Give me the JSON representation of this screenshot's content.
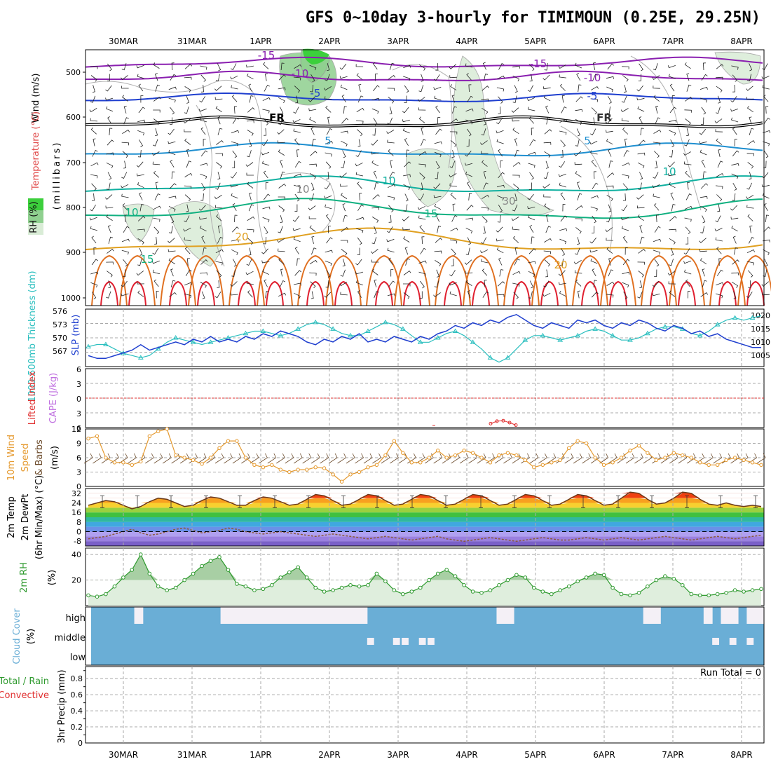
{
  "chart_data": {
    "type": "line",
    "title": "GFS 0~10day 3-hourly for TIMIMOUN (0.25E, 29.25N)",
    "dates": [
      "30MAR",
      "31MAR",
      "1APR",
      "2APR",
      "3APR",
      "4APR",
      "5APR",
      "6APR",
      "7APR",
      "8APR"
    ],
    "colors": {
      "grid": "#aaaaaa",
      "slp": "#1f3fcf",
      "thickness": "#2bbfbf",
      "lifted": "#e03030",
      "cape": "#c070e0",
      "wind": "#e59a30",
      "barbs": "#6b4a2a",
      "rh": "#2f9a2f",
      "rhfill": "#dfeedd",
      "cloud": "#6aaed6",
      "cloudgap": "#f4f0f6",
      "dewpt": "#8a5a3a",
      "rain": "#e03030",
      "total": "#2f9a2f",
      "purple": "#8a1fb0",
      "blue": "#1f3fcf",
      "lightblue": "#1f8fd0",
      "teal": "#10b0a0",
      "green": "#10b080",
      "orange": "#e0a020",
      "darkorange": "#e07020",
      "red": "#e02030"
    },
    "sounding": {
      "ylabel_wind": "Wind (m/s)",
      "ylabel_temp": "Temperature (°C)",
      "ylabel_rh": "RH (%)",
      "ylabel_mb": "(millibars)",
      "yticks": [
        "500",
        "600",
        "700",
        "800",
        "900",
        "1000"
      ],
      "contour_labels": [
        "-15",
        "-15",
        "-10",
        "-10",
        "-5",
        "-5",
        "FR",
        "FR",
        "5",
        "5",
        "10",
        "10",
        "15",
        "15",
        "20",
        "20",
        "10",
        "10",
        "30"
      ]
    },
    "slp_panel": {
      "ylabel_thickness": "1000-500mb Thickness (dm)",
      "ylabel_slp": "SLP (mb)",
      "ticks_thickness": [
        "576",
        "573",
        "570",
        "567"
      ],
      "ticks_slp": [
        "1020",
        "1015",
        "1010",
        "1005"
      ],
      "slp": [
        1006,
        1005,
        1005,
        1006,
        1007,
        1008,
        1010,
        1008,
        1009,
        1010,
        1011,
        1010,
        1012,
        1011,
        1013,
        1011,
        1012,
        1011,
        1013,
        1012,
        1014,
        1013,
        1015,
        1014,
        1013,
        1011,
        1010,
        1012,
        1011,
        1013,
        1012,
        1014,
        1011,
        1012,
        1011,
        1013,
        1012,
        1011,
        1013,
        1012,
        1014,
        1015,
        1017,
        1016,
        1018,
        1017,
        1019,
        1018,
        1020,
        1021,
        1019,
        1017,
        1016,
        1018,
        1017,
        1016,
        1019,
        1018,
        1019,
        1017,
        1016,
        1018,
        1017,
        1019,
        1018,
        1016,
        1015,
        1017,
        1016,
        1014,
        1015,
        1013,
        1014,
        1012,
        1011,
        1010,
        1009,
        1009
      ],
      "thickness": [
        568.5,
        569,
        569,
        568,
        567,
        566.5,
        566,
        566.5,
        568,
        569.5,
        570.5,
        570,
        569.5,
        569,
        569.5,
        570,
        570.5,
        571,
        571.5,
        572,
        572,
        571.5,
        571,
        571.5,
        572.5,
        573.5,
        574,
        573.5,
        572.5,
        571.5,
        571,
        571,
        572,
        573,
        574,
        573.5,
        572.5,
        571,
        569.5,
        569.5,
        570.5,
        571.5,
        572,
        571,
        569.5,
        568,
        566,
        565,
        566,
        568,
        570,
        571,
        571,
        570.5,
        570,
        570.5,
        571,
        572,
        572.5,
        572,
        571,
        570,
        570,
        570.5,
        571.5,
        572.5,
        573,
        573,
        572.5,
        571.5,
        571,
        572,
        573.5,
        574.5,
        575,
        574.5,
        575,
        575.5
      ]
    },
    "cape_panel": {
      "ylabel_lifted": "Lifted Index",
      "ylabel_cape": "CAPE (J/kg)",
      "ticks": [
        "6",
        "3",
        "0",
        "3",
        "6"
      ],
      "lifted_segment": [
        5.2,
        4.7,
        4.6,
        5.0,
        5.5
      ]
    },
    "wind_panel": {
      "ylabel_main": "10m Wind",
      "ylabel_speed": "Speed",
      "ylabel_barbs": "& Barbs",
      "units": "(m/s)",
      "ticks": [
        "12",
        "9",
        "6",
        "3",
        "0"
      ],
      "speed": [
        10,
        10.5,
        6,
        5,
        5,
        4.5,
        5.2,
        10.5,
        11.5,
        12,
        6.5,
        6,
        5.5,
        4.7,
        6,
        8,
        9.5,
        9.5,
        6,
        4.5,
        4,
        4.5,
        3.5,
        3,
        3.5,
        3.5,
        4,
        3.8,
        2.5,
        1,
        2.5,
        3,
        4,
        4.5,
        6.5,
        9.5,
        7,
        5,
        5,
        6,
        7.5,
        6,
        6.5,
        7.5,
        7,
        6,
        5,
        6.5,
        7,
        6.5,
        5.5,
        4,
        4.5,
        5,
        5.5,
        8,
        9.5,
        9,
        6,
        4.5,
        5,
        6,
        7.5,
        8.5,
        7,
        5.5,
        6,
        7,
        6.5,
        6,
        5,
        4.5,
        4.5,
        5.5,
        6,
        5.5,
        5,
        4.5
      ]
    },
    "temp_panel": {
      "ylabel_main": "2m Temp",
      "ylabel_dew": "2m DewPt",
      "ylabel_minmax": "(6hr Min/Max) (°C)",
      "ticks": [
        "32",
        "24",
        "16",
        "8",
        "0",
        "-8"
      ],
      "temp": [
        22,
        24,
        26,
        25,
        22,
        19,
        21,
        25,
        28,
        27,
        24,
        21,
        22,
        26,
        29,
        28,
        25,
        22,
        22,
        26,
        29,
        28,
        25,
        22,
        23,
        27,
        31,
        30,
        26,
        22,
        23,
        27,
        31,
        30,
        26,
        22,
        23,
        27,
        31,
        30,
        26,
        22,
        23,
        27,
        31,
        30,
        26,
        22,
        23,
        27,
        31,
        30,
        26,
        22,
        23,
        27,
        31,
        30,
        26,
        22,
        23,
        28,
        33,
        32,
        27,
        23,
        24,
        28,
        33,
        32,
        27,
        23,
        22,
        24,
        22,
        21,
        22,
        21
      ],
      "dewpt": [
        -6,
        -5,
        -4,
        -2,
        0,
        2,
        -1,
        -3,
        -2,
        0,
        2,
        3,
        1,
        -1,
        0,
        1,
        3,
        2,
        0,
        -1,
        -2,
        -1,
        0,
        -1,
        -2,
        -3,
        -4,
        -3,
        -2,
        -3,
        -4,
        -5,
        -6,
        -5,
        -4,
        -5,
        -6,
        -7,
        -6,
        -5,
        -4,
        -6,
        -7,
        -8,
        -7,
        -6,
        -5,
        -6,
        -7,
        -8,
        -7,
        -6,
        -5,
        -6,
        -7,
        -7,
        -6,
        -5,
        -6,
        -7,
        -6,
        -5,
        -6,
        -7,
        -6,
        -5,
        -4,
        -5,
        -6,
        -7,
        -6,
        -5,
        -4,
        -5,
        -6,
        -5,
        -4,
        -3
      ]
    },
    "rh_panel": {
      "ylabel": "2m RH",
      "units": "(%)",
      "ticks": [
        "40",
        "20"
      ],
      "rh": [
        8,
        7,
        9,
        15,
        22,
        28,
        40,
        25,
        15,
        12,
        14,
        20,
        25,
        31,
        35,
        38,
        28,
        17,
        15,
        12,
        13,
        16,
        22,
        26,
        30,
        22,
        14,
        11,
        12,
        14,
        16,
        15,
        16,
        25,
        19,
        12,
        9,
        11,
        14,
        20,
        25,
        28,
        23,
        16,
        11,
        10,
        12,
        16,
        20,
        24,
        22,
        14,
        11,
        9,
        12,
        15,
        19,
        22,
        25,
        24,
        14,
        9,
        8,
        10,
        15,
        20,
        23,
        21,
        16,
        9,
        8,
        8,
        9,
        10,
        12,
        11,
        12,
        13
      ]
    },
    "cloud_panel": {
      "ylabel": "Cloud Cover",
      "units": "(%)",
      "levels": [
        "high",
        "middle",
        "low"
      ],
      "high": [
        0,
        0,
        0,
        0,
        0,
        1,
        0,
        0,
        0,
        0,
        0,
        0,
        0,
        0,
        0,
        1,
        1,
        1,
        1,
        1,
        1,
        1,
        1,
        1,
        1,
        1,
        1,
        1,
        1,
        1,
        1,
        1,
        0,
        0,
        0,
        0,
        0,
        0,
        0,
        0,
        0,
        0,
        0,
        0,
        0,
        0,
        0,
        1,
        1,
        0,
        0,
        0,
        0,
        0,
        0,
        0,
        0,
        0,
        0,
        0,
        0,
        0,
        0,
        0,
        1,
        1,
        0,
        0,
        0,
        0,
        0,
        1,
        0,
        1,
        1,
        0,
        1,
        1
      ],
      "middle": [
        0,
        0,
        0,
        0,
        0,
        0,
        0,
        0,
        0,
        0,
        0,
        0,
        0,
        0,
        0,
        0,
        0,
        0,
        0,
        0,
        0,
        0,
        0,
        0,
        0,
        0,
        0,
        0,
        0,
        0,
        0,
        0,
        1,
        0,
        0,
        1,
        1,
        0,
        1,
        1,
        0,
        0,
        0,
        0,
        0,
        0,
        0,
        0,
        0,
        0,
        0,
        0,
        0,
        0,
        0,
        0,
        0,
        0,
        0,
        0,
        0,
        0,
        0,
        0,
        0,
        0,
        0,
        0,
        0,
        0,
        0,
        0,
        1,
        0,
        1,
        0,
        1,
        0
      ]
    },
    "precip_panel": {
      "ylabel_total": "Total / Rain",
      "ylabel_conv": "Convective",
      "ylabel_units": "3hr Precip (mm)",
      "ticks": [
        "0.8",
        "0.6",
        "0.4",
        "0.2",
        "0"
      ],
      "run_total": "Run Total = 0"
    }
  }
}
